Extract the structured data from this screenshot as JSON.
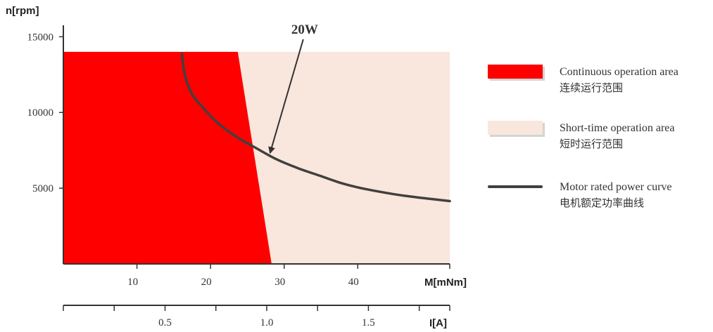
{
  "chart_data": {
    "type": "area",
    "y_axis": {
      "label": "n[rpm]",
      "ticks": [
        5000,
        10000,
        15000
      ],
      "range": [
        0,
        16500
      ]
    },
    "x_axis_torque": {
      "label": "M[mNm]",
      "ticks": [
        10,
        20,
        30,
        40
      ],
      "range": [
        0,
        52.5
      ]
    },
    "x_axis_current": {
      "label": "I[A]",
      "ticks": [
        0.5,
        1.0,
        1.5
      ],
      "tick_labels": [
        "0.5",
        "1.0",
        "1.5"
      ],
      "minor_ticks": [
        0.25,
        0.75,
        1.25,
        1.75
      ],
      "range": [
        0,
        1.9
      ]
    },
    "areas": [
      {
        "name": "Short-time operation area",
        "color": "#f9e6dc",
        "polygon": [
          [
            0,
            0
          ],
          [
            0,
            14000
          ],
          [
            52.5,
            14000
          ],
          [
            52.5,
            0
          ]
        ]
      },
      {
        "name": "Continuous operation area",
        "color": "#ff0000",
        "polygon": [
          [
            0,
            0
          ],
          [
            0,
            14000
          ],
          [
            23.7,
            14000
          ],
          [
            28.3,
            0
          ]
        ]
      }
    ],
    "series": [
      {
        "name": "Motor rated power curve",
        "color": "#404040",
        "points": [
          [
            16.1,
            13900
          ],
          [
            16.5,
            12500
          ],
          [
            17.5,
            11200
          ],
          [
            19,
            10300
          ],
          [
            21,
            9300
          ],
          [
            23.5,
            8400
          ],
          [
            26,
            7700
          ],
          [
            29,
            6900
          ],
          [
            32,
            6300
          ],
          [
            35,
            5800
          ],
          [
            38,
            5300
          ],
          [
            41,
            4950
          ],
          [
            45,
            4600
          ],
          [
            48,
            4400
          ],
          [
            52.5,
            4150
          ]
        ]
      }
    ],
    "annotations": [
      {
        "text": "20W",
        "point_to": [
          28.1,
          7350
        ]
      }
    ],
    "legend": {
      "placement": "right",
      "items": [
        {
          "kind": "box",
          "color": "#ff0000",
          "en": "Continuous operation area",
          "zh": "连续运行范围"
        },
        {
          "kind": "box",
          "color": "#f9e6dc",
          "en": "Short-time operation area",
          "zh": "短时运行范围"
        },
        {
          "kind": "line",
          "color": "#404040",
          "en": "Motor rated power curve",
          "zh": "电机额定功率曲线"
        }
      ]
    }
  }
}
